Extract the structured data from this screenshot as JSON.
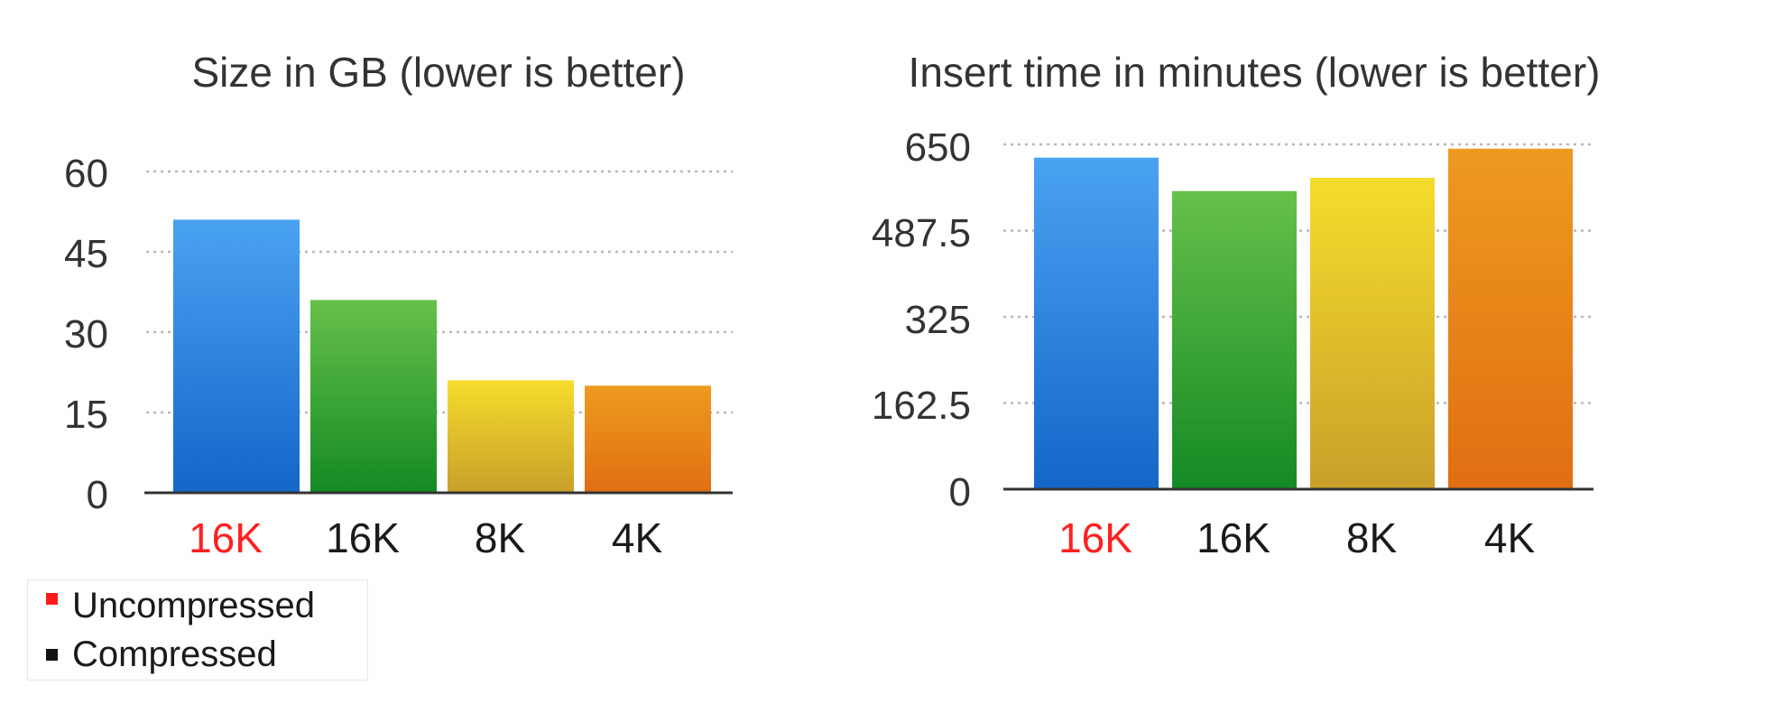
{
  "chart_data": [
    {
      "type": "bar",
      "title": "Size in GB (lower is better)",
      "categories": [
        "16K",
        "16K",
        "8K",
        "4K"
      ],
      "category_label_colors": [
        "#ff2020",
        "#1a1a1a",
        "#1a1a1a",
        "#1a1a1a"
      ],
      "values": [
        51,
        36,
        21,
        20
      ],
      "bar_colors": [
        "#2f86e0",
        "#3aa83a",
        "#e8c830",
        "#ea8a18"
      ],
      "yticks": [
        "0",
        "15",
        "30",
        "45",
        "60"
      ],
      "ylim": [
        0,
        60
      ],
      "grid": true
    },
    {
      "type": "bar",
      "title": "Insert time in minutes (lower is better)",
      "categories": [
        "16K",
        "16K",
        "8K",
        "4K"
      ],
      "category_label_colors": [
        "#ff2020",
        "#1a1a1a",
        "#1a1a1a",
        "#1a1a1a"
      ],
      "values": [
        625,
        562,
        587,
        642
      ],
      "bar_colors": [
        "#2f86e0",
        "#3aa83a",
        "#e8c830",
        "#ea8a18"
      ],
      "yticks": [
        "0",
        "162.5",
        "325",
        "487.5",
        "650"
      ],
      "ylim": [
        0,
        650
      ],
      "grid": true
    }
  ],
  "legend": {
    "placement": "bottom-left",
    "items": [
      {
        "label": "Uncompressed",
        "color": "#ff1a1a"
      },
      {
        "label": "Compressed",
        "color": "#111111"
      }
    ]
  }
}
